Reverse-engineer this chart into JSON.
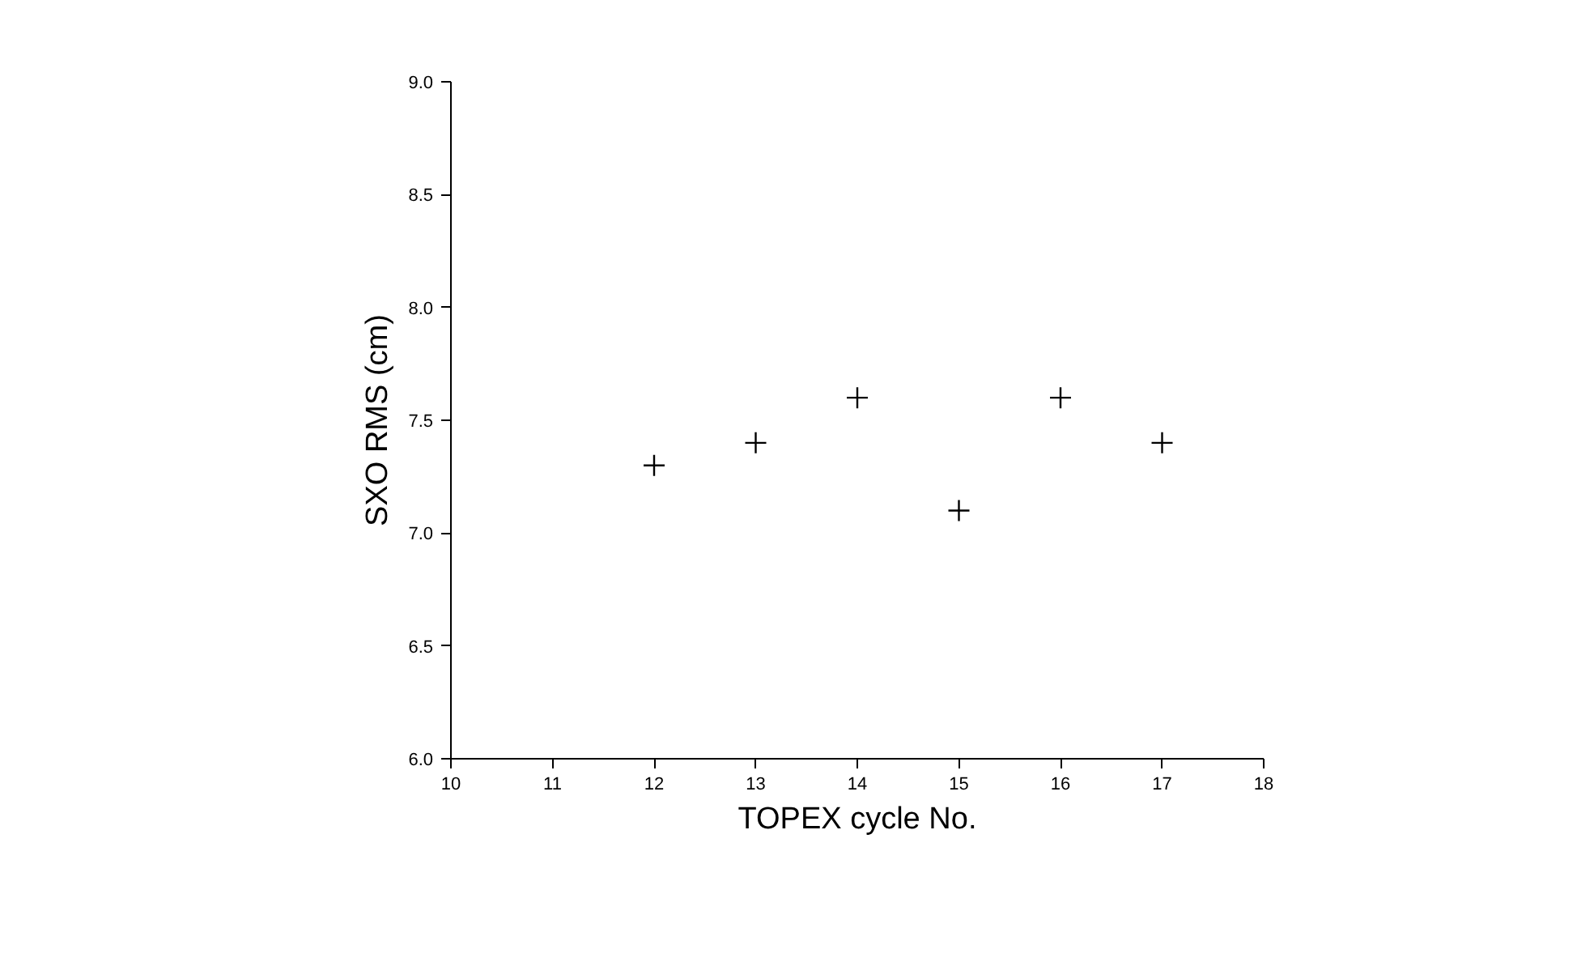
{
  "chart_data": {
    "type": "scatter",
    "xlabel": "TOPEX cycle No.",
    "ylabel": "SXO RMS (cm)",
    "x": [
      12,
      13,
      14,
      15,
      16,
      17
    ],
    "values": [
      7.3,
      7.4,
      7.6,
      7.1,
      7.6,
      7.4
    ],
    "color": "#000000",
    "marker": "cross",
    "xlim": [
      10,
      18
    ],
    "xticks": [
      10,
      11,
      12,
      13,
      14,
      15,
      16,
      17,
      18
    ],
    "ylim": [
      6.0,
      9.0
    ],
    "yticks": [
      {
        "value": 6.0,
        "label": "6.0"
      },
      {
        "value": 6.5,
        "label": "6.5"
      },
      {
        "value": 7.0,
        "label": "7.0"
      },
      {
        "value": 7.5,
        "label": "7.5"
      },
      {
        "value": 8.0,
        "label": "8.0"
      },
      {
        "value": 8.5,
        "label": "8.5"
      },
      {
        "value": 9.0,
        "label": "9.0"
      }
    ],
    "grid": false
  }
}
